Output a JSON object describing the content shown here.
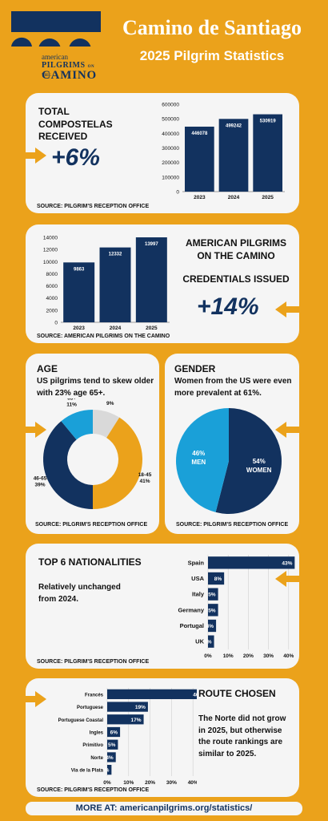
{
  "header": {
    "logo_line1": "american",
    "logo_line2": "PILGRIMS",
    "logo_line2b": "ON THE",
    "logo_line3": "CAMINO",
    "title": "Camino de Santiago",
    "subtitle": "2025 Pilgrim Statistics"
  },
  "compostelas": {
    "title": "TOTAL COMPOSTELAS RECEIVED",
    "change": "+6%",
    "source": "SOURCE: PILGRIM'S RECEPTION OFFICE"
  },
  "credentials": {
    "title_line1": "AMERICAN PILGRIMS",
    "title_line2": "ON THE CAMINO",
    "title_line3": "CREDENTIALS ISSUED",
    "change": "+14%",
    "source": "SOURCE: AMERICAN PILGRIMS ON THE CAMINO"
  },
  "age": {
    "title": "AGE",
    "description": "US pilgrims tend to skew older with 23% age 65+.",
    "source": "SOURCE: PILGRIM'S RECEPTION OFFICE"
  },
  "gender": {
    "title": "GENDER",
    "description": "Women from the US were even more prevalent at 61%.",
    "source": "SOURCE: PILGRIM'S RECEPTION OFFICE"
  },
  "nationalities": {
    "title": "TOP 6 NATIONALITIES",
    "description": "Relatively unchanged from 2024.",
    "source": "SOURCE: PILGRIM'S RECEPTION OFFICE"
  },
  "routes": {
    "title": "ROUTE CHOSEN",
    "description": "The Norte did not grow in 2025, but otherwise the route rankings are similar to 2025.",
    "source": "SOURCE: PILGRIM'S RECEPTION OFFICE"
  },
  "footer": {
    "text": "MORE AT: americanpilgrims.org/statistics/"
  },
  "colors": {
    "navy": "#12325F",
    "orange": "#EBA21B",
    "lightblue": "#1AA0D8",
    "gray": "#D9D9D9",
    "card": "#F5F5F5"
  },
  "chart_data": [
    {
      "id": "compostelas",
      "type": "bar",
      "categories": [
        "2023",
        "2024",
        "2025"
      ],
      "values": [
        446078,
        499242,
        530919
      ],
      "ylim": [
        0,
        600000
      ],
      "yticks": [
        0,
        100000,
        200000,
        300000,
        400000,
        500000,
        600000
      ],
      "grid": false
    },
    {
      "id": "credentials",
      "type": "bar",
      "categories": [
        "2023",
        "2024",
        "2025"
      ],
      "values": [
        9863,
        12332,
        13997
      ],
      "ylim": [
        0,
        14000
      ],
      "yticks": [
        0,
        2000,
        4000,
        6000,
        8000,
        10000,
        12000,
        14000
      ],
      "grid": false
    },
    {
      "id": "age",
      "type": "pie",
      "donut": true,
      "labels": [
        "<18",
        "18-45",
        "46-65",
        "65+"
      ],
      "values": [
        9,
        41,
        39,
        11
      ],
      "colors": [
        "#D9D9D9",
        "#EBA21B",
        "#12325F",
        "#1AA0D8"
      ]
    },
    {
      "id": "gender",
      "type": "pie",
      "donut": false,
      "labels": [
        "WOMEN",
        "MEN"
      ],
      "values": [
        54,
        46
      ],
      "colors": [
        "#12325F",
        "#1AA0D8"
      ]
    },
    {
      "id": "nationalities",
      "type": "bar",
      "orientation": "horizontal",
      "categories": [
        "Spain",
        "USA",
        "Italy",
        "Germany",
        "Portugal",
        "UK"
      ],
      "values": [
        43,
        8,
        5,
        5,
        4,
        3
      ],
      "xlim": [
        0,
        50
      ],
      "xticks": [
        0,
        10,
        20,
        30,
        40,
        50
      ],
      "grid": true
    },
    {
      "id": "routes",
      "type": "bar",
      "orientation": "horizontal",
      "categories": [
        "Francés",
        "Portuguese",
        "Portuguese Coastal",
        "Ingles",
        "Primitivo",
        "Norte",
        "Via de la Plata"
      ],
      "values": [
        46,
        19,
        17,
        6,
        5,
        4,
        2
      ],
      "xlim": [
        0,
        50
      ],
      "xticks": [
        0,
        10,
        20,
        30,
        40,
        50
      ],
      "grid": true
    }
  ]
}
